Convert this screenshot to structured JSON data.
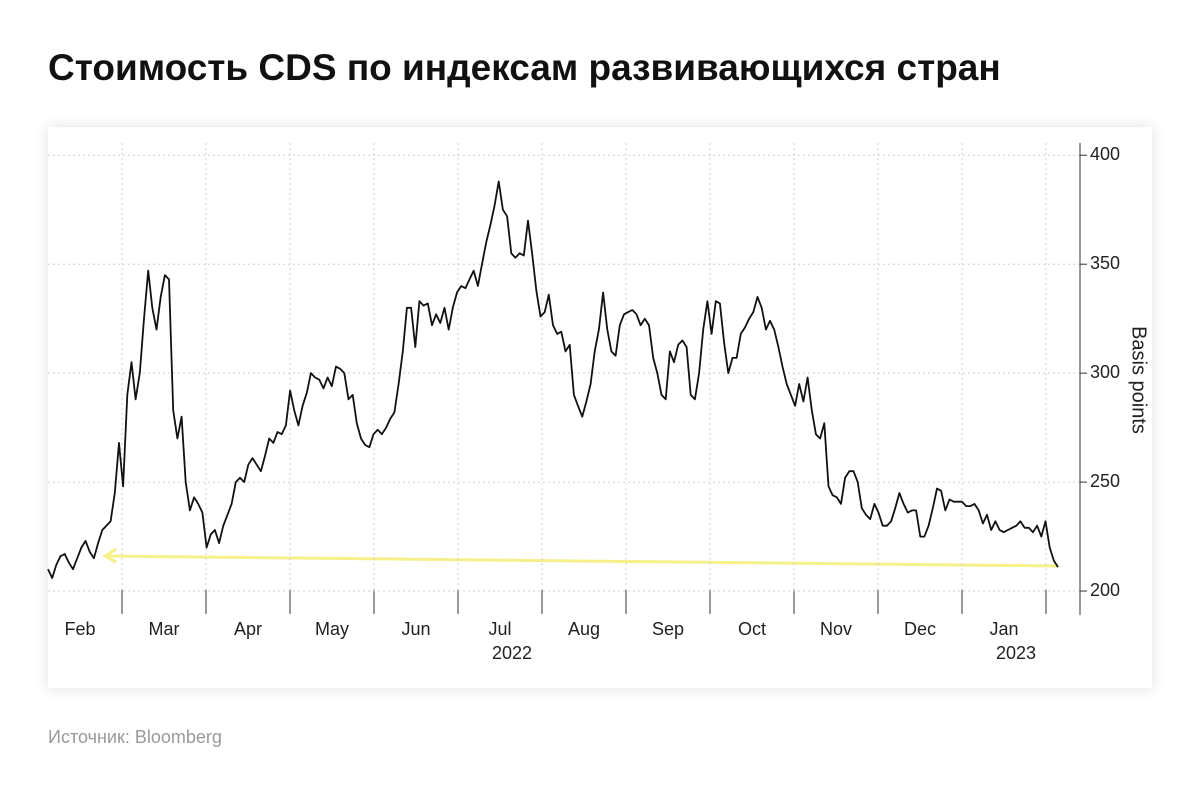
{
  "chart_data": {
    "type": "line",
    "title": "Стоимость CDS по индексам развивающихся стран",
    "months": [
      {
        "label": "Feb"
      },
      {
        "label": "Mar"
      },
      {
        "label": "Apr"
      },
      {
        "label": "May"
      },
      {
        "label": "Jun"
      },
      {
        "label": "Jul",
        "year": "2022"
      },
      {
        "label": "Aug"
      },
      {
        "label": "Sep"
      },
      {
        "label": "Oct"
      },
      {
        "label": "Nov"
      },
      {
        "label": "Dec"
      },
      {
        "label": "Jan",
        "year": "2023"
      }
    ],
    "values": [
      210,
      206,
      212,
      216,
      217,
      213,
      210,
      215,
      220,
      223,
      218,
      215,
      222,
      228,
      230,
      232,
      245,
      268,
      248,
      290,
      305,
      288,
      300,
      325,
      347,
      330,
      320,
      335,
      345,
      343,
      283,
      270,
      280,
      250,
      237,
      243,
      240,
      236,
      220,
      226,
      228,
      222,
      230,
      235,
      240,
      250,
      252,
      250,
      258,
      261,
      258,
      255,
      262,
      270,
      268,
      273,
      272,
      276,
      292,
      283,
      276,
      285,
      291,
      300,
      298,
      297,
      293,
      298,
      294,
      303,
      302,
      300,
      288,
      290,
      277,
      270,
      267,
      266,
      272,
      274,
      272,
      275,
      279,
      282,
      295,
      310,
      330,
      330,
      312,
      333,
      331,
      332,
      322,
      327,
      323,
      330,
      320,
      330,
      337,
      340,
      339,
      343,
      347,
      340,
      350,
      360,
      368,
      377,
      388,
      375,
      372,
      355,
      353,
      355,
      354,
      370,
      355,
      338,
      326,
      328,
      336,
      322,
      318,
      319,
      310,
      313,
      290,
      285,
      280,
      287,
      295,
      310,
      320,
      337,
      320,
      310,
      308,
      322,
      327,
      328,
      329,
      327,
      322,
      325,
      322,
      307,
      300,
      290,
      288,
      310,
      305,
      313,
      315,
      312,
      290,
      288,
      300,
      320,
      333,
      318,
      333,
      332,
      314,
      300,
      307,
      307,
      318,
      321,
      325,
      328,
      335,
      330,
      320,
      324,
      320,
      312,
      303,
      295,
      290,
      285,
      295,
      287,
      298,
      283,
      272,
      270,
      277,
      248,
      244,
      243,
      240,
      252,
      255,
      255,
      250,
      238,
      235,
      233,
      240,
      236,
      230,
      230,
      232,
      238,
      245,
      240,
      236,
      237,
      237,
      225,
      225,
      230,
      238,
      247,
      246,
      237,
      242,
      241,
      241,
      241,
      239,
      239,
      240,
      237,
      231,
      235,
      228,
      232,
      228,
      227,
      228,
      229,
      230,
      232,
      229,
      229,
      227,
      230,
      225,
      232,
      220,
      214,
      211
    ],
    "color": "#111111",
    "ylim": [
      189,
      407
    ],
    "yticks": [
      200,
      250,
      300,
      350,
      400
    ],
    "y_label": "Basis points",
    "grid": true,
    "source": "Источник: Bloomberg"
  }
}
